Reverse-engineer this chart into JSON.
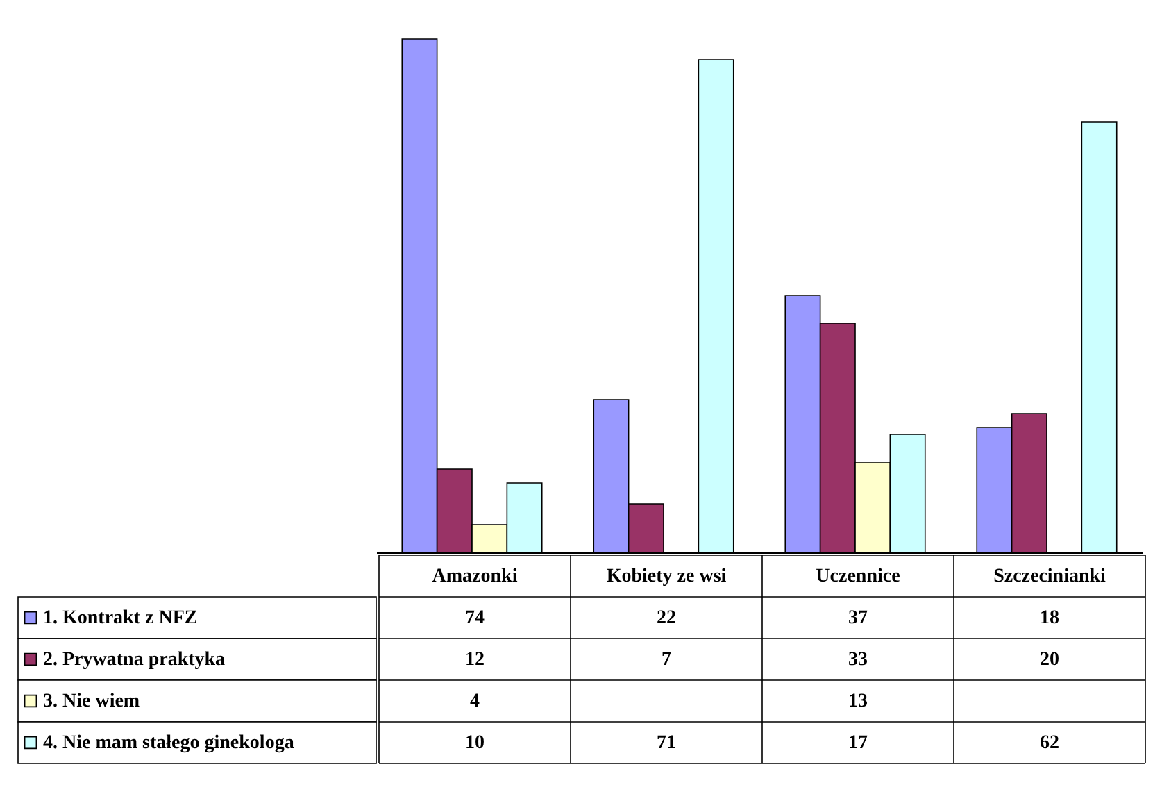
{
  "chart_data": {
    "type": "bar",
    "categories": [
      "Amazonki",
      "Kobiety ze wsi",
      "Uczennice",
      "Szczecinianki"
    ],
    "series": [
      {
        "name": "1. Kontrakt z NFZ",
        "color": "#9999ff",
        "values": [
          74,
          22,
          37,
          18
        ]
      },
      {
        "name": "2. Prywatna praktyka",
        "color": "#993366",
        "values": [
          12,
          7,
          33,
          20
        ]
      },
      {
        "name": "3. Nie wiem",
        "color": "#ffffcc",
        "values": [
          4,
          null,
          13,
          null
        ]
      },
      {
        "name": "4. Nie mam stałego ginekologa",
        "color": "#ccffff",
        "values": [
          10,
          71,
          17,
          62
        ]
      }
    ],
    "data_labels": true,
    "legend": "bottom left",
    "grid": false
  }
}
